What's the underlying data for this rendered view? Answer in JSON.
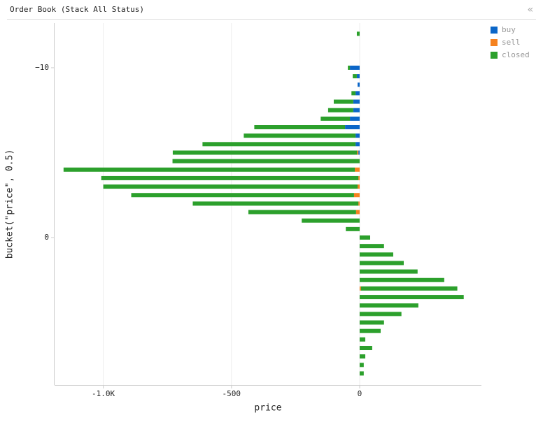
{
  "chart_data": {
    "type": "hbar_stacked",
    "title": "Order Book (Stack All Status)",
    "xlabel": "price",
    "ylabel": "bucket(\"price\", 0.5)",
    "buckets": [
      -12,
      -11.5,
      -11,
      -10.5,
      -10,
      -9.5,
      -9,
      -8.5,
      -8,
      -7.5,
      -7,
      -6.5,
      -6,
      -5.5,
      -5,
      -4.5,
      -4,
      -3.5,
      -3,
      -2.5,
      -2,
      -1.5,
      -1,
      -0.5,
      0,
      0.5,
      1,
      1.5,
      2,
      2.5,
      3,
      3.5,
      4,
      4.5,
      5,
      5.5,
      6,
      6.5,
      7,
      7.5,
      8
    ],
    "series": [
      {
        "name": "buy",
        "color": "#0b66c8",
        "values": [
          0,
          0,
          0,
          0,
          -38,
          -11,
          -8,
          -16,
          -25,
          -25,
          -38,
          -57,
          -16,
          -16,
          -5,
          0,
          0,
          0,
          0,
          0,
          0,
          0,
          0,
          0,
          0,
          0,
          0,
          0,
          0,
          0,
          0,
          0,
          0,
          0,
          0,
          0,
          0,
          0,
          0,
          0,
          0
        ]
      },
      {
        "name": "sell",
        "color": "#f5821f",
        "values": [
          0,
          0,
          0,
          0,
          0,
          0,
          0,
          0,
          0,
          0,
          0,
          0,
          0,
          0,
          -5,
          0,
          -19,
          -5,
          -8,
          -22,
          -5,
          -14,
          0,
          0,
          0,
          0,
          0,
          0,
          0,
          0,
          5,
          0,
          0,
          0,
          0,
          0,
          0,
          0,
          0,
          0,
          0
        ]
      },
      {
        "name": "closed",
        "color": "#2ca02c",
        "values": [
          -11,
          0,
          0,
          0,
          -8,
          -16,
          0,
          -16,
          -76,
          -98,
          -114,
          -354,
          -436,
          -597,
          -719,
          -730,
          -1136,
          -1003,
          -992,
          -869,
          -646,
          -420,
          -226,
          -54,
          41,
          95,
          131,
          172,
          226,
          330,
          376,
          406,
          229,
          163,
          95,
          82,
          22,
          49,
          22,
          16,
          16
        ]
      }
    ],
    "xlim": [
      -1190,
      475
    ],
    "xticks": [
      {
        "value": -1000,
        "label": "-1.0K"
      },
      -500,
      0
    ],
    "ylim": [
      -12.63,
      8.68
    ],
    "yticks": [
      {
        "value": -10,
        "label": "−10"
      },
      0
    ],
    "grid": true,
    "legend": "top-right"
  }
}
